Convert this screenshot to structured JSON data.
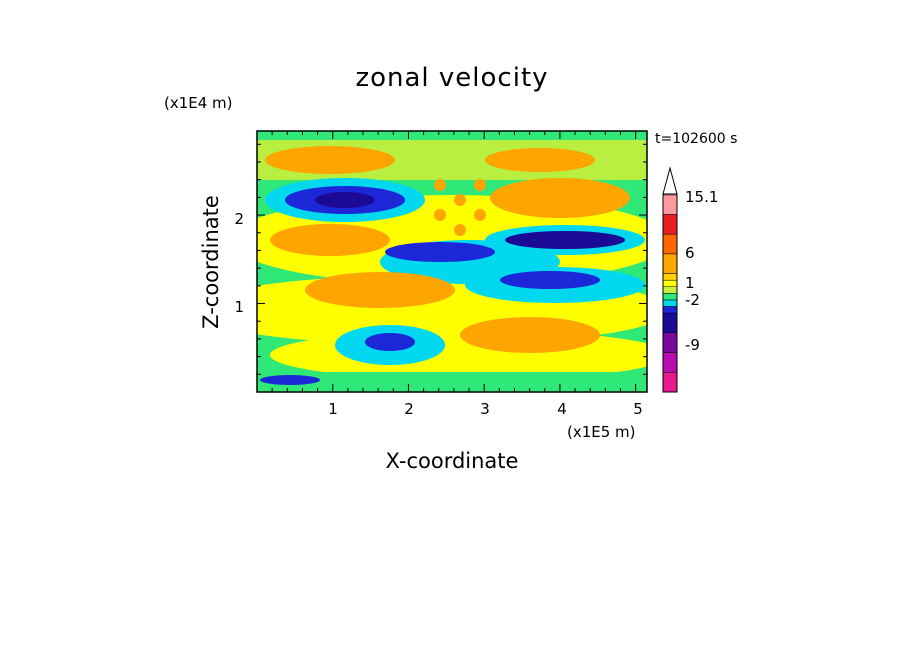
{
  "chart_data": {
    "type": "heatmap",
    "title": "zonal velocity",
    "xlabel": "X-coordinate",
    "ylabel": "Z-coordinate",
    "x_unit": "(x1E5 m)",
    "y_unit": "(x1E4 m)",
    "time_label": "t=102600 s",
    "xlim": [
      0,
      5.15
    ],
    "ylim": [
      0,
      2.95
    ],
    "x_ticks": [
      "1",
      "2",
      "3",
      "4",
      "5"
    ],
    "y_ticks": [
      "1",
      "2"
    ],
    "colorbar": {
      "labels": [
        "15.1",
        "6",
        "1",
        "-2",
        "-9"
      ],
      "label_values": [
        15.1,
        6,
        1,
        -2,
        -9
      ],
      "levels": [
        -15,
        -12,
        -9,
        -6,
        -3,
        -2,
        -1,
        0,
        1,
        2,
        3,
        6,
        9,
        12,
        15.1
      ],
      "colors": [
        "#e8198c",
        "#b80cae",
        "#7a0a9e",
        "#1a0a96",
        "#1c28d8",
        "#00d8f0",
        "#30e878",
        "#c8f03a",
        "#ffff00",
        "#ffd200",
        "#ffa500",
        "#ff6600",
        "#e81e1e",
        "#ff9aa0",
        "#ffe4e4"
      ],
      "extend": "max"
    },
    "features": [
      {
        "x": 0.9,
        "z": 2.2,
        "value": -9
      },
      {
        "x": 1.6,
        "z": 0.62,
        "value": -6
      },
      {
        "x": 1.2,
        "z": 1.2,
        "value": 6
      },
      {
        "x": 3.6,
        "z": 2.2,
        "value": 6
      },
      {
        "x": 4.0,
        "z": 1.8,
        "value": -9
      },
      {
        "x": 3.6,
        "z": 1.3,
        "value": -6
      },
      {
        "x": 3.4,
        "z": 0.8,
        "value": 6
      },
      {
        "x": 1.0,
        "z": 2.6,
        "value": 6
      },
      {
        "x": 2.6,
        "z": 2.0,
        "value": 6
      }
    ]
  }
}
